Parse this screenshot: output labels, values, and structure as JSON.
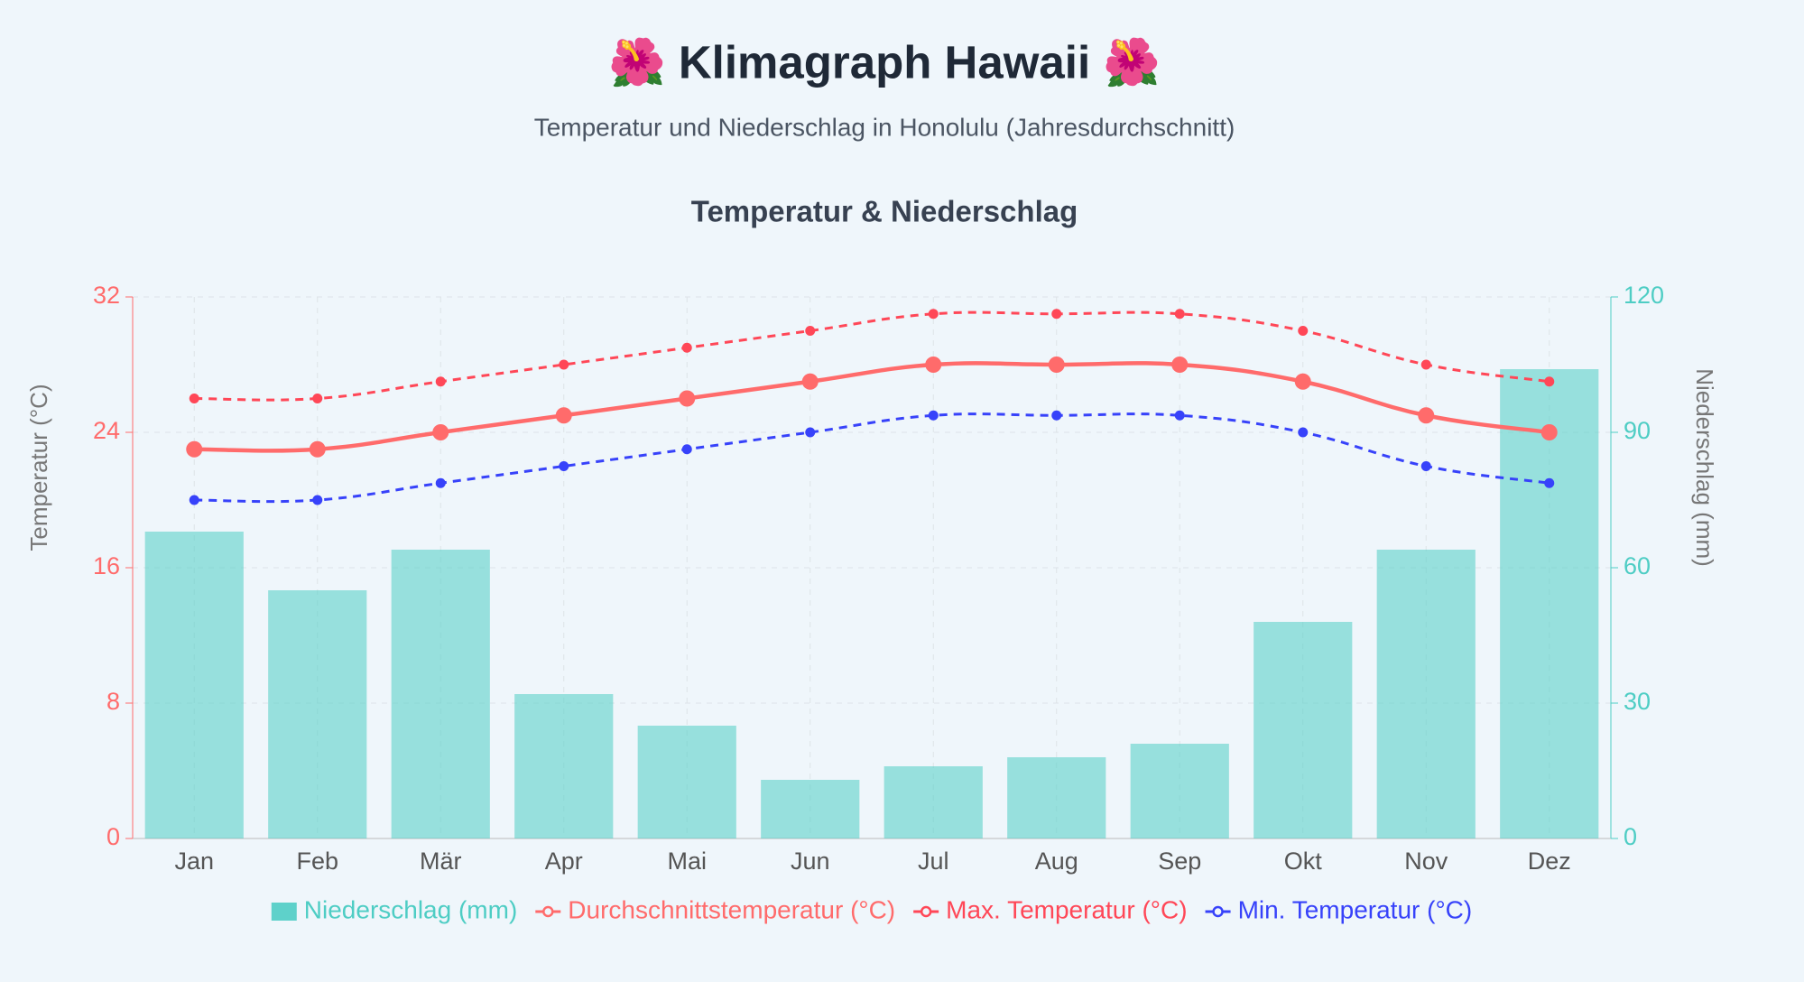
{
  "chart_data": {
    "type": "bar-line",
    "title": "🌺 Klimagraph Hawaii 🌺",
    "subtitle": "Temperatur und Niederschlag in Honolulu (Jahresdurchschnitt)",
    "chart_title": "Temperatur & Niederschlag",
    "y_label": "Temperatur (°C)",
    "y2_label": "Niederschlag (mm)",
    "categories": [
      "Jan",
      "Feb",
      "Mär",
      "Apr",
      "Mai",
      "Jun",
      "Jul",
      "Aug",
      "Sep",
      "Okt",
      "Nov",
      "Dez"
    ],
    "series": [
      {
        "name": "Niederschlag (mm)",
        "type": "bar",
        "axis": "y2",
        "color": "#4ecdc4",
        "values": [
          68,
          55,
          64,
          32,
          25,
          13,
          16,
          18,
          21,
          48,
          64,
          104
        ]
      },
      {
        "name": "Durchschnittstemperatur (°C)",
        "type": "line",
        "color": "#ff6b6b",
        "dashed": false,
        "values": [
          23,
          23,
          24,
          25,
          26,
          27,
          28,
          28,
          28,
          27,
          25,
          24
        ]
      },
      {
        "name": "Max. Temperatur (°C)",
        "type": "line",
        "color": "#ff4757",
        "dashed": true,
        "values": [
          26,
          26,
          27,
          28,
          29,
          30,
          31,
          31,
          31,
          30,
          28,
          27
        ]
      },
      {
        "name": "Min. Temperatur (°C)",
        "type": "line",
        "color": "#3742fa",
        "dashed": true,
        "values": [
          20,
          20,
          21,
          22,
          23,
          24,
          25,
          25,
          25,
          24,
          22,
          21
        ]
      }
    ],
    "ylim": [
      0,
      32
    ],
    "yticks": [
      0,
      8,
      16,
      24,
      32
    ],
    "y2lim": [
      0,
      120
    ],
    "y2ticks": [
      0,
      30,
      60,
      90,
      120
    ],
    "grid": true,
    "legend": "bottom"
  }
}
